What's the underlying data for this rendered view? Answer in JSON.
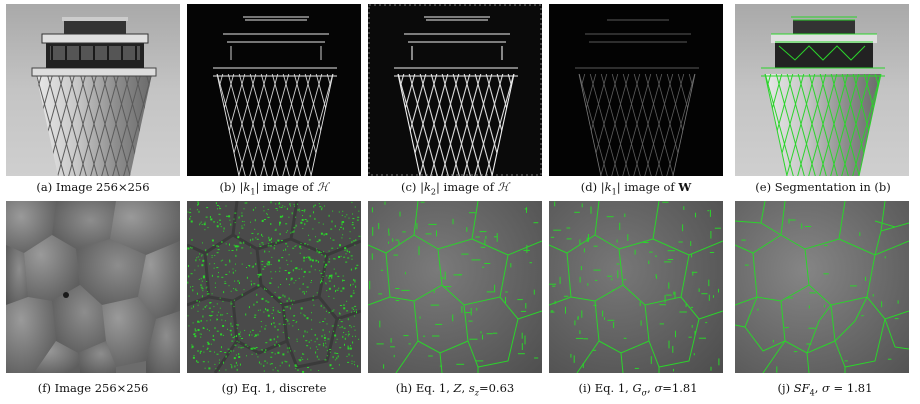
{
  "figure": {
    "row1": [
      {
        "tag": "(a)",
        "text": "Image 256×256"
      },
      {
        "tag": "(b)",
        "pre": "|",
        "k": "k",
        "ksub": "1",
        "post": "| image of ",
        "sym": "ℋ"
      },
      {
        "tag": "(c)",
        "pre": "|",
        "k": "k",
        "ksub": "2",
        "post": "| image of ",
        "sym": "ℋ"
      },
      {
        "tag": "(d)",
        "pre": "|",
        "k": "k",
        "ksub": "1",
        "post": "| image of ",
        "sym": "W"
      },
      {
        "tag": "(e)",
        "text": "Segmentation in (b)"
      }
    ],
    "row2": [
      {
        "tag": "(f)",
        "text": "Image 256×256"
      },
      {
        "tag": "(g)",
        "text": "Eq. 1, discrete"
      },
      {
        "tag": "(h)",
        "a": "Eq. 1, ",
        "v1": "Z",
        "b": ", ",
        "v2": "s",
        "v2sub": "z",
        "c": "=0.63"
      },
      {
        "tag": "(i)",
        "a": "Eq. 1, ",
        "v1": "G",
        "v1sub": "σ",
        "b": ", ",
        "v2": "σ",
        "c": "=1.81"
      },
      {
        "tag": "(j)",
        "v1": "SF",
        "v1sub": "4",
        "b": ", ",
        "v2": "σ",
        "c": " = 1.81"
      }
    ]
  },
  "colors": {
    "edge_green": "#2bd42b",
    "sky": "#b9b9b9",
    "tower": "#9a9a9a",
    "dark": "#050505",
    "texture": "#6e6e6e"
  }
}
